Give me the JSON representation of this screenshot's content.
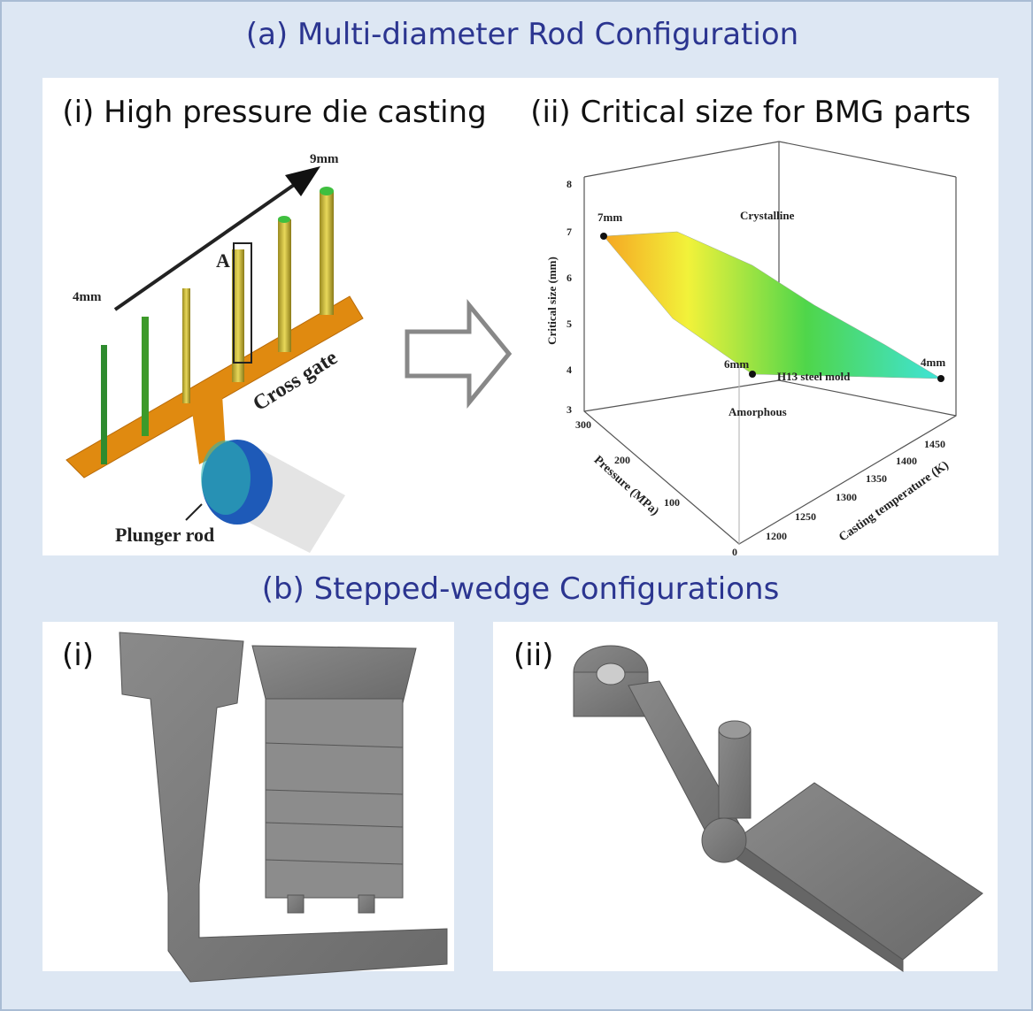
{
  "header": {
    "title": "(a) Multi-diameter Rod Configuration"
  },
  "panel_a": {
    "left": {
      "title": "(i) High pressure die casting",
      "labels": {
        "max_diameter": "9mm",
        "min_diameter": "4mm",
        "section": "A",
        "cross_gate": "Cross gate",
        "plunger": "Plunger rod"
      }
    },
    "right": {
      "title": "(ii) Critical size for BMG parts",
      "z_axis": {
        "label": "Critical size (mm)",
        "ticks": [
          "8",
          "7",
          "6",
          "5",
          "4",
          "3"
        ]
      },
      "pressure_axis": {
        "label": "Pressure (MPa)",
        "ticks": [
          "300",
          "200",
          "100",
          "0"
        ]
      },
      "temperature_axis": {
        "label": "Casting temperature (K)",
        "ticks": [
          "1200",
          "1250",
          "1300",
          "1350",
          "1400",
          "1450"
        ]
      },
      "annotations": {
        "p7": "7mm",
        "crystalline": "Crystalline",
        "p6": "6mm",
        "mold": "H13 steel mold",
        "p4": "4mm",
        "amorphous": "Amorphous"
      }
    }
  },
  "section_b": {
    "title": "(b) Stepped-wedge Configurations",
    "left_label": "(i)",
    "right_label": "(ii)"
  }
}
